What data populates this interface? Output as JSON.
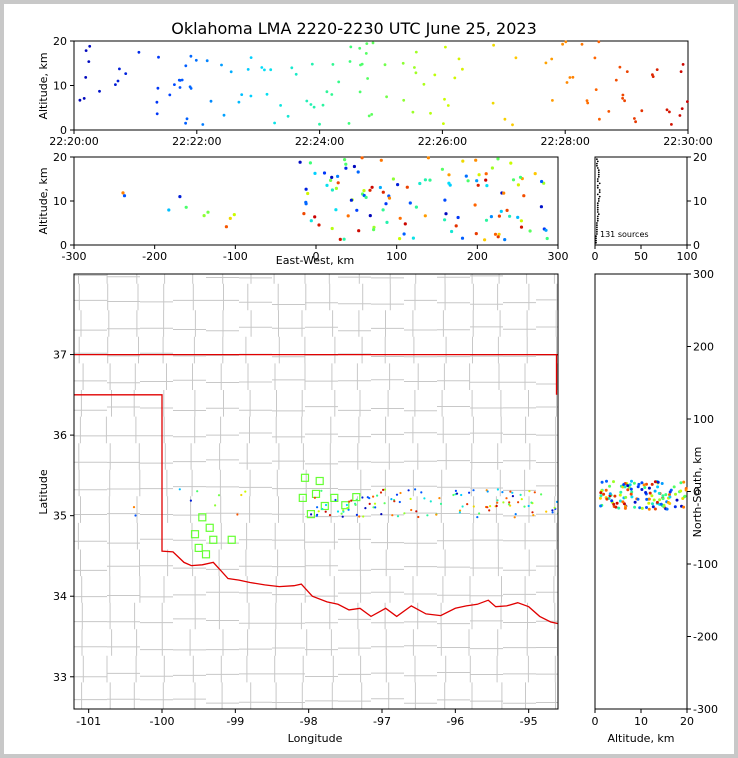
{
  "title": "Oklahoma LMA 2220-2230 UTC June 25, 2023",
  "colors": {
    "state_border": "#e00000",
    "county": "#c8c8c8",
    "station": "#66ff33"
  },
  "chart_data": [
    {
      "id": "time-altitude",
      "type": "scatter",
      "ylabel": "Altitude, km",
      "ylim": [
        0,
        20
      ],
      "xlim_minutes": [
        0,
        10
      ],
      "xticks": [
        "22:20:00",
        "22:22:00",
        "22:24:00",
        "22:26:00",
        "22:28:00",
        "22:30:00"
      ],
      "yticks": [
        "0",
        "10",
        "20"
      ],
      "colorby": "time"
    },
    {
      "id": "ew-altitude",
      "type": "scatter",
      "xlabel": "East-West, km",
      "ylabel": "Altitude, km",
      "xlim": [
        -300,
        300
      ],
      "ylim": [
        0,
        20
      ],
      "xticks": [
        "-300",
        "-200",
        "-100",
        "0",
        "100",
        "200",
        "300"
      ],
      "yticks": [
        "0",
        "10",
        "20"
      ]
    },
    {
      "id": "altitude-histogram",
      "type": "scatter",
      "xlim": [
        0,
        100
      ],
      "ylim": [
        0,
        20
      ],
      "xticks": [
        "0",
        "50",
        "100"
      ],
      "yticks": [
        "0",
        "10",
        "20"
      ],
      "annotation": "131 sources"
    },
    {
      "id": "plan-view",
      "type": "scatter",
      "xlabel": "Longitude",
      "ylabel": "Latitude",
      "xlim": [
        -101.2,
        -94.6
      ],
      "ylim": [
        32.6,
        38.0
      ],
      "xticks": [
        "-101",
        "-100",
        "-99",
        "-98",
        "-97",
        "-96",
        "-95"
      ],
      "yticks": [
        "33",
        "34",
        "35",
        "36",
        "37"
      ],
      "stations": [
        [
          -98.05,
          35.47
        ],
        [
          -97.85,
          35.43
        ],
        [
          -98.08,
          35.22
        ],
        [
          -97.9,
          35.27
        ],
        [
          -97.97,
          35.02
        ],
        [
          -97.78,
          35.12
        ],
        [
          -97.65,
          35.22
        ],
        [
          -97.5,
          35.13
        ],
        [
          -97.35,
          35.23
        ],
        [
          -99.45,
          34.98
        ],
        [
          -99.35,
          34.85
        ],
        [
          -99.55,
          34.77
        ],
        [
          -99.3,
          34.7
        ],
        [
          -99.5,
          34.6
        ],
        [
          -99.4,
          34.52
        ],
        [
          -99.05,
          34.7
        ]
      ]
    },
    {
      "id": "ns-altitude",
      "type": "scatter",
      "xlabel": "Altitude, km",
      "ylabel": "North-South, km",
      "xlim": [
        0,
        20
      ],
      "ylim": [
        -300,
        300
      ],
      "xticks": [
        "0",
        "10",
        "20"
      ],
      "yticks": [
        "-300",
        "-200",
        "-100",
        "0",
        "100",
        "200",
        "300"
      ]
    }
  ]
}
